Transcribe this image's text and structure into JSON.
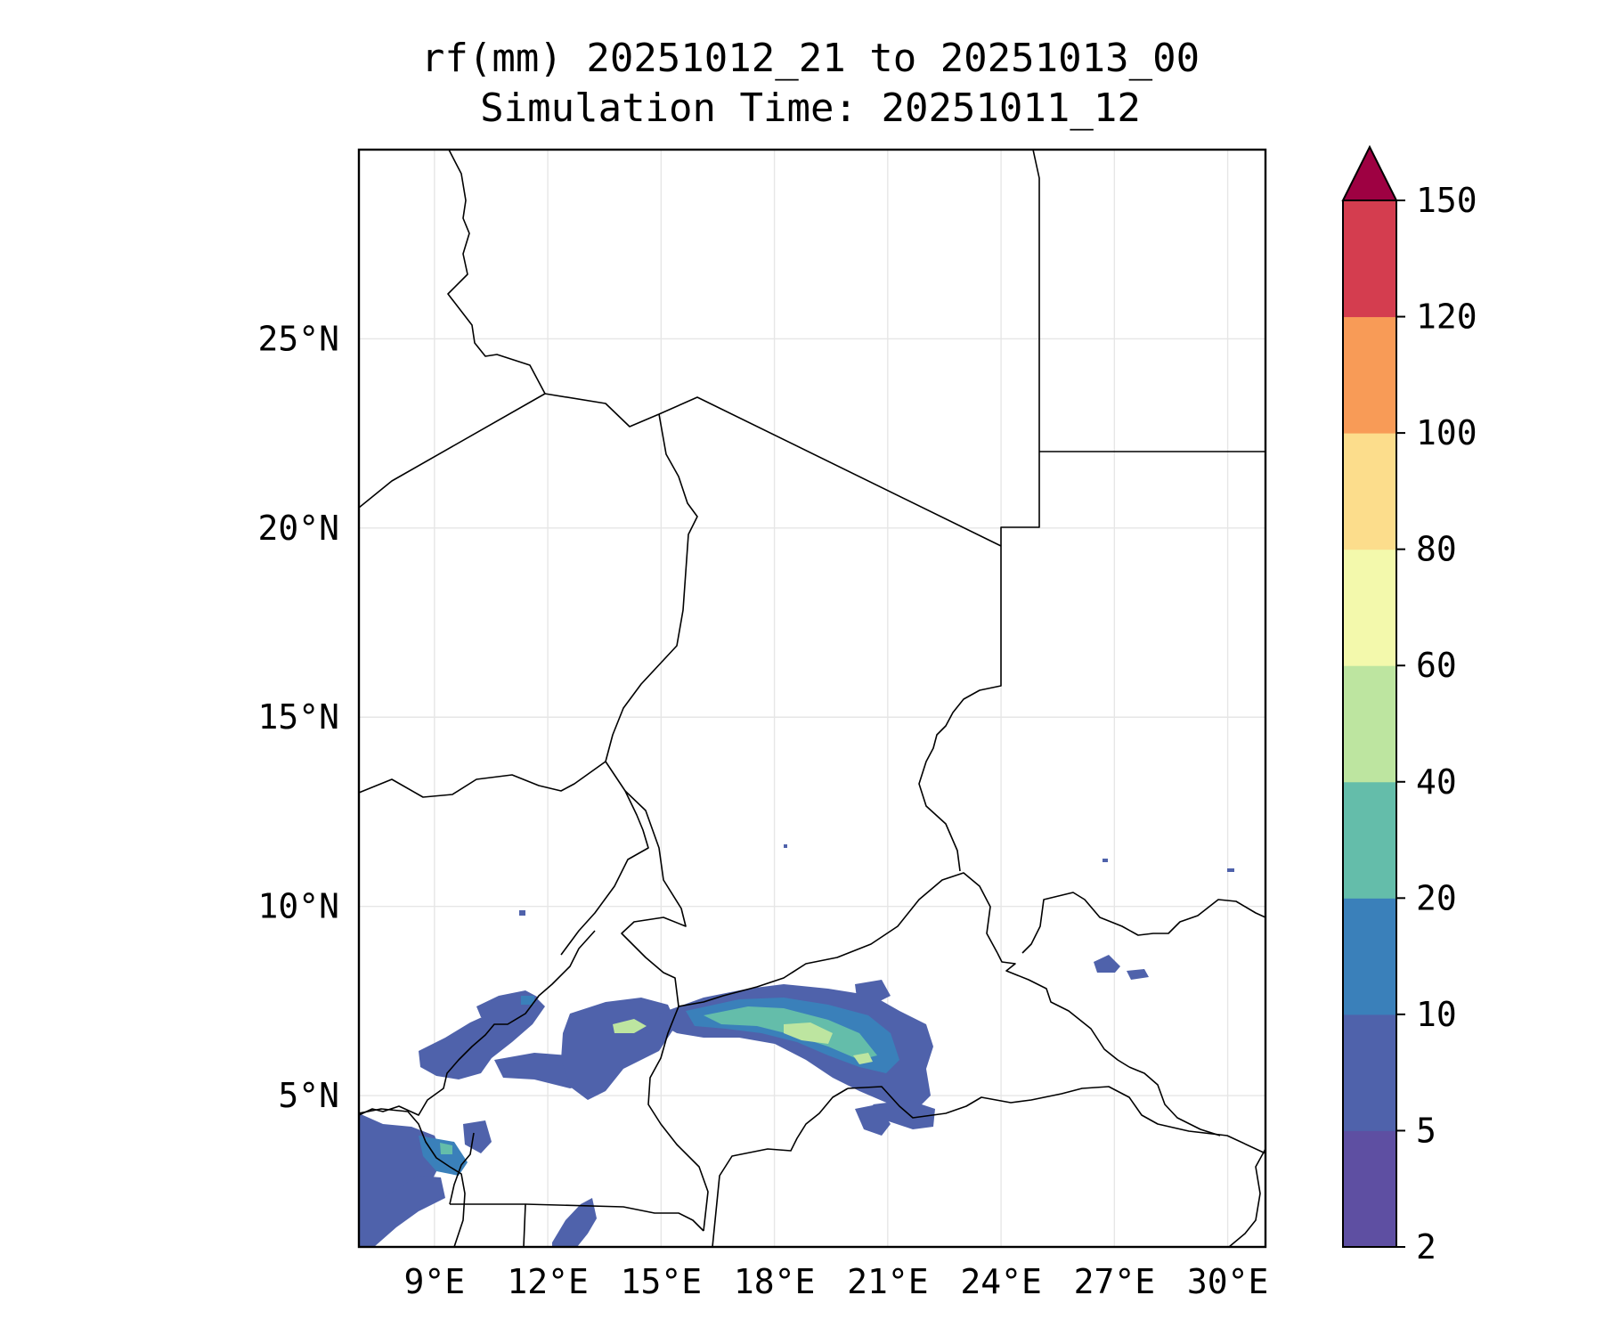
{
  "title": {
    "line1": "rf(mm) 20251012_21 to 20251013_00",
    "line2": "Simulation Time: 20251011_12"
  },
  "map": {
    "lon_range": [
      7.0,
      31.0
    ],
    "lat_range": [
      1.0,
      30.0
    ],
    "lon_ticks": [
      {
        "value": 9,
        "label": "9°E"
      },
      {
        "value": 12,
        "label": "12°E"
      },
      {
        "value": 15,
        "label": "15°E"
      },
      {
        "value": 18,
        "label": "18°E"
      },
      {
        "value": 21,
        "label": "21°E"
      },
      {
        "value": 24,
        "label": "24°E"
      },
      {
        "value": 27,
        "label": "27°E"
      },
      {
        "value": 30,
        "label": "30°E"
      }
    ],
    "lat_ticks": [
      {
        "value": 5,
        "label": "5°N"
      },
      {
        "value": 10,
        "label": "10°N"
      },
      {
        "value": 15,
        "label": "15°N"
      },
      {
        "value": 20,
        "label": "20°N"
      },
      {
        "value": 25,
        "label": "25°N"
      }
    ],
    "gridlines": true
  },
  "colorbar": {
    "levels": [
      {
        "value": 2,
        "label": "2"
      },
      {
        "value": 5,
        "label": "5"
      },
      {
        "value": 10,
        "label": "10"
      },
      {
        "value": 20,
        "label": "20"
      },
      {
        "value": 40,
        "label": "40"
      },
      {
        "value": 60,
        "label": "60"
      },
      {
        "value": 80,
        "label": "80"
      },
      {
        "value": 100,
        "label": "100"
      },
      {
        "value": 120,
        "label": "120"
      },
      {
        "value": 150,
        "label": "150"
      }
    ],
    "colors": [
      "#5e4fa2",
      "#4f62ab",
      "#3a80ba",
      "#64bdaa",
      "#bde5a0",
      "#f3f9ac",
      "#fcdd8c",
      "#f89b57",
      "#d43d4f"
    ],
    "extend_color": "#9e0142",
    "extend": "max"
  }
}
